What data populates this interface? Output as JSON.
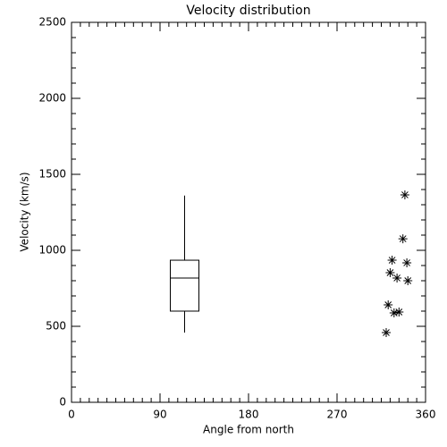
{
  "chart_data": {
    "type": "box",
    "title": "Velocity distribution",
    "x_label": "Angle from north",
    "y_label": "Velocity (km/s)",
    "xlim": [
      0,
      360
    ],
    "xticks": [
      0,
      90,
      180,
      270,
      360
    ],
    "xminor": 9,
    "ylim": [
      0,
      2500
    ],
    "yticks": [
      0,
      500,
      1000,
      1500,
      2000,
      2500
    ],
    "yminor": 5,
    "color": "#000000",
    "box": {
      "x": 115,
      "whisker_low": 459,
      "q1": 600,
      "median": 818,
      "q3": 935,
      "whisker_high": 1360
    },
    "points": {
      "type": "scatter",
      "marker": "asterisk",
      "x": [
        339,
        337,
        326,
        341,
        324,
        331,
        342,
        322,
        328,
        333,
        320
      ],
      "y": [
        1365,
        1076,
        935,
        918,
        853,
        818,
        800,
        641,
        588,
        594,
        459
      ]
    }
  }
}
